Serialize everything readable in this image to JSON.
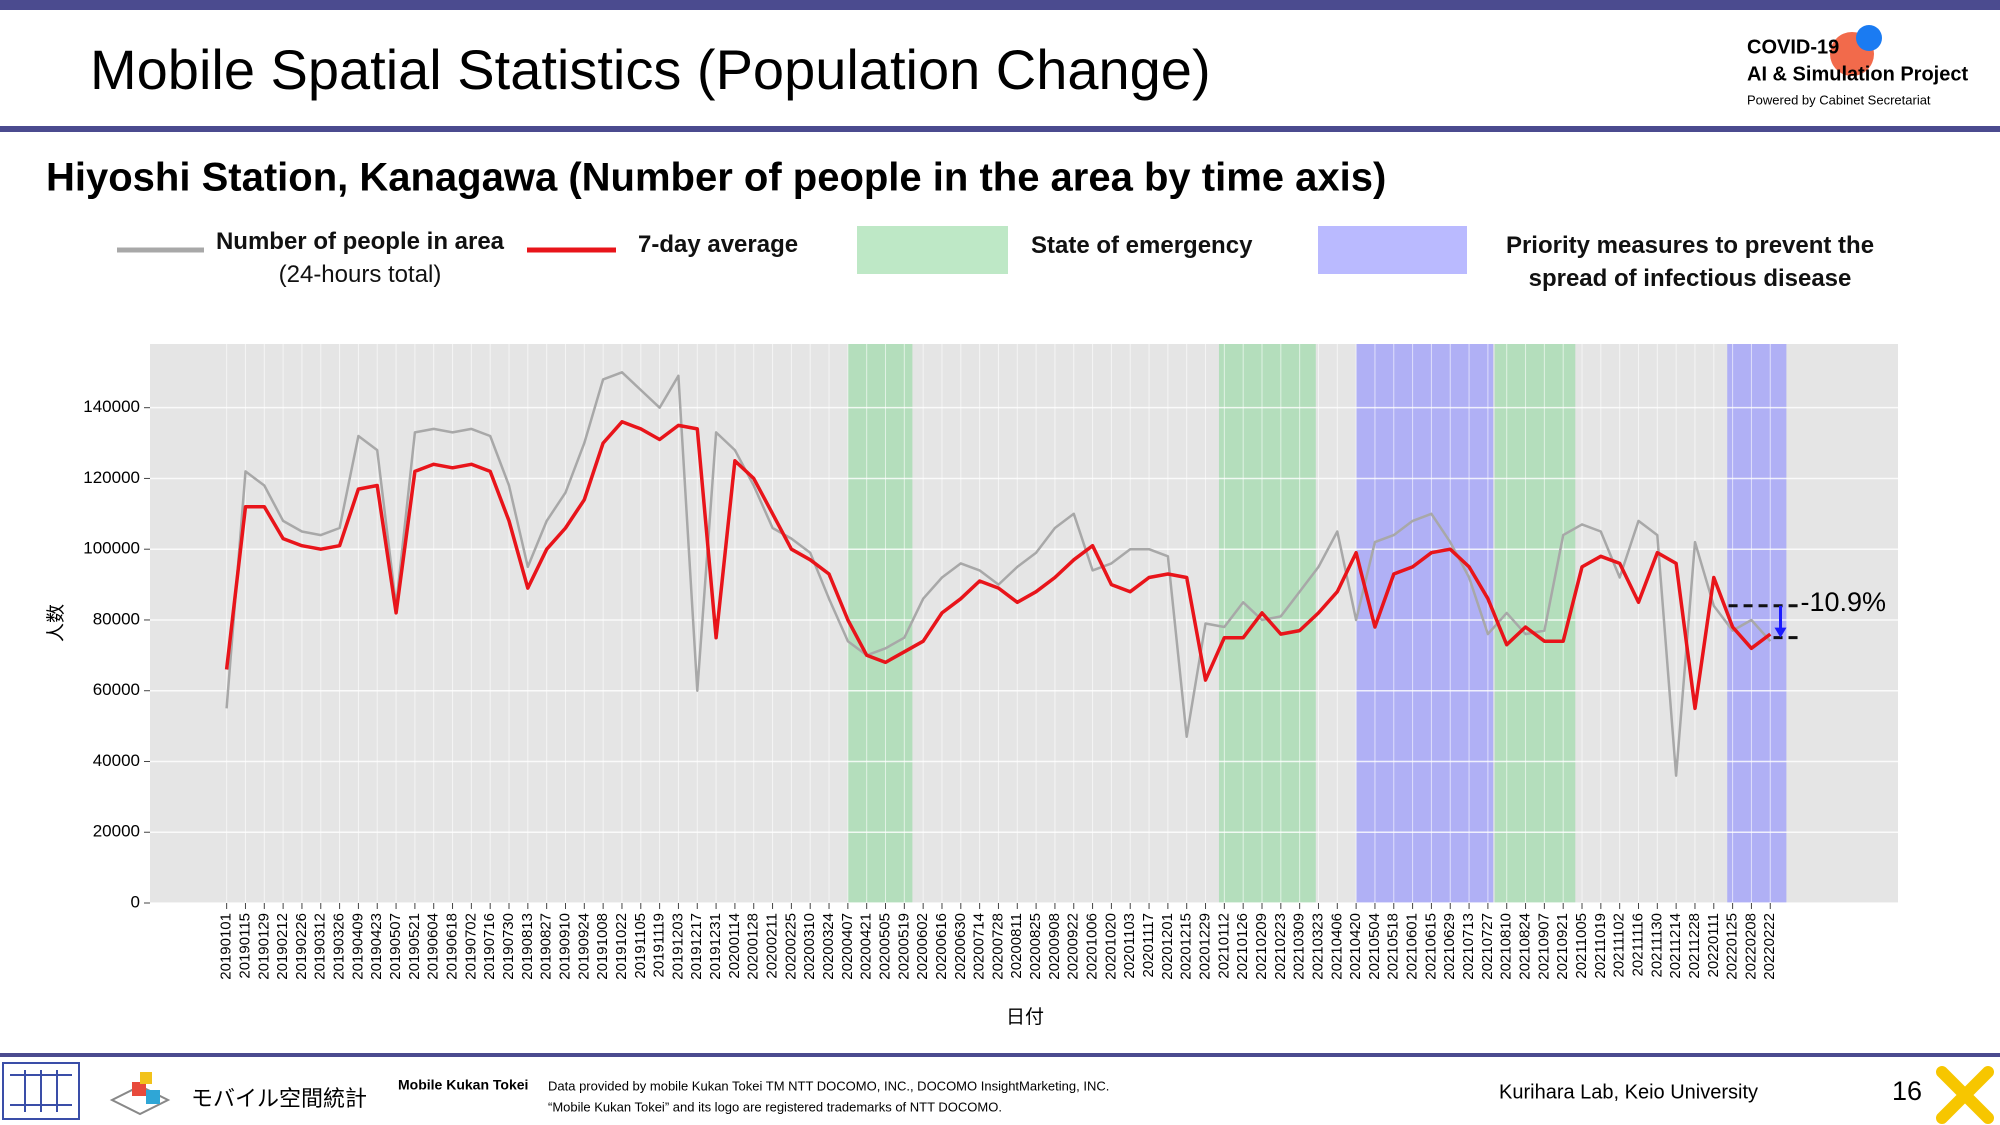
{
  "header": {
    "title": "Mobile Spatial Statistics (Population Change)",
    "logo": {
      "line1": "COVID-19",
      "line2": "AI & Simulation Project",
      "line3": "Powered by Cabinet Secretariat"
    }
  },
  "chart_data": {
    "type": "line",
    "title": "Hiyoshi Station, Kanagawa (Number of people in the area by time axis)",
    "xlabel": "日付",
    "ylabel": "人数",
    "categories": [
      "20190101",
      "20190115",
      "20190129",
      "20190212",
      "20190226",
      "20190312",
      "20190326",
      "20190409",
      "20190423",
      "20190507",
      "20190521",
      "20190604",
      "20190618",
      "20190702",
      "20190716",
      "20190730",
      "20190813",
      "20190827",
      "20190910",
      "20190924",
      "20191008",
      "20191022",
      "20191105",
      "20191119",
      "20191203",
      "20191217",
      "20191231",
      "20200114",
      "20200128",
      "20200211",
      "20200225",
      "20200310",
      "20200324",
      "20200407",
      "20200421",
      "20200505",
      "20200519",
      "20200602",
      "20200616",
      "20200630",
      "20200714",
      "20200728",
      "20200811",
      "20200825",
      "20200908",
      "20200922",
      "20201006",
      "20201020",
      "20201103",
      "20201117",
      "20201201",
      "20201215",
      "20201229",
      "20210112",
      "20210126",
      "20210209",
      "20210223",
      "20210309",
      "20210323",
      "20210406",
      "20210420",
      "20210504",
      "20210518",
      "20210601",
      "20210615",
      "20210629",
      "20210713",
      "20210727",
      "20210810",
      "20210824",
      "20210907",
      "20210921",
      "20211005",
      "20211019",
      "20211102",
      "20211116",
      "20211130",
      "20211214",
      "20211228",
      "20220111",
      "20220125",
      "20220208",
      "20220222"
    ],
    "xlim": [
      "20181105",
      "20220528"
    ],
    "series": [
      {
        "name": "Number of people in area",
        "subname": "(24-hours total)",
        "color": "#a8a8a8",
        "values": [
          55000,
          122000,
          118000,
          108000,
          105000,
          104000,
          106000,
          132000,
          128000,
          84000,
          133000,
          134000,
          133000,
          134000,
          132000,
          118000,
          95000,
          108000,
          116000,
          130000,
          148000,
          150000,
          145000,
          140000,
          149000,
          60000,
          133000,
          128000,
          118000,
          106000,
          103000,
          99000,
          86000,
          74000,
          70000,
          72000,
          75000,
          86000,
          92000,
          96000,
          94000,
          90000,
          95000,
          99000,
          106000,
          110000,
          94000,
          96000,
          100000,
          100000,
          98000,
          47000,
          79000,
          78000,
          85000,
          80000,
          81000,
          88000,
          95000,
          105000,
          80000,
          102000,
          104000,
          108000,
          110000,
          102000,
          92000,
          76000,
          82000,
          76000,
          77000,
          104000,
          107000,
          105000,
          92000,
          108000,
          104000,
          36000,
          102000,
          84000,
          77000,
          80000,
          74000
        ]
      },
      {
        "name": "7-day average",
        "color": "#e8141a",
        "values": [
          66000,
          112000,
          112000,
          103000,
          101000,
          100000,
          101000,
          117000,
          118000,
          82000,
          122000,
          124000,
          123000,
          124000,
          122000,
          108000,
          89000,
          100000,
          106000,
          114000,
          130000,
          136000,
          134000,
          131000,
          135000,
          134000,
          75000,
          125000,
          120000,
          110000,
          100000,
          97000,
          93000,
          80000,
          70000,
          68000,
          71000,
          74000,
          82000,
          86000,
          91000,
          89000,
          85000,
          88000,
          92000,
          97000,
          101000,
          90000,
          88000,
          92000,
          93000,
          92000,
          63000,
          75000,
          75000,
          82000,
          76000,
          77000,
          82000,
          88000,
          99000,
          78000,
          93000,
          95000,
          99000,
          100000,
          95000,
          86000,
          73000,
          78000,
          74000,
          74000,
          95000,
          98000,
          96000,
          85000,
          99000,
          96000,
          55000,
          92000,
          78000,
          72000,
          76000
        ]
      }
    ],
    "bands": [
      {
        "name": "State of emergency",
        "color": "#93d9a0",
        "periods": [
          [
            "20200407",
            "20200525"
          ],
          [
            "20210108",
            "20210321"
          ],
          [
            "20210801",
            "20210930"
          ]
        ]
      },
      {
        "name": "Priority measures to prevent the spread of infectious disease",
        "color": "#8c8cff",
        "periods": [
          [
            "20210420",
            "20210731"
          ],
          [
            "20220121",
            "20220306"
          ]
        ]
      }
    ],
    "annotation": {
      "text": "-10.9%",
      "from": 84000,
      "to": 75000,
      "x": [
        "20220122",
        "20220315"
      ],
      "color": "#1a1aff"
    },
    "ylim": [
      0,
      158000
    ],
    "yticks": [
      0,
      20000,
      40000,
      60000,
      80000,
      100000,
      120000,
      140000
    ],
    "grid": true
  },
  "footer": {
    "logo_text": "モバイル空間統計",
    "brand": "Mobile Kukan Tokei",
    "credit1": "Data provided by mobile Kukan Tokei TM NTT DOCOMO, INC., DOCOMO InsightMarketing, INC.",
    "credit2": "“Mobile Kukan Tokei” and its logo are registered trademarks of NTT DOCOMO.",
    "lab": "Kurihara Lab, Keio University",
    "page": "16"
  }
}
